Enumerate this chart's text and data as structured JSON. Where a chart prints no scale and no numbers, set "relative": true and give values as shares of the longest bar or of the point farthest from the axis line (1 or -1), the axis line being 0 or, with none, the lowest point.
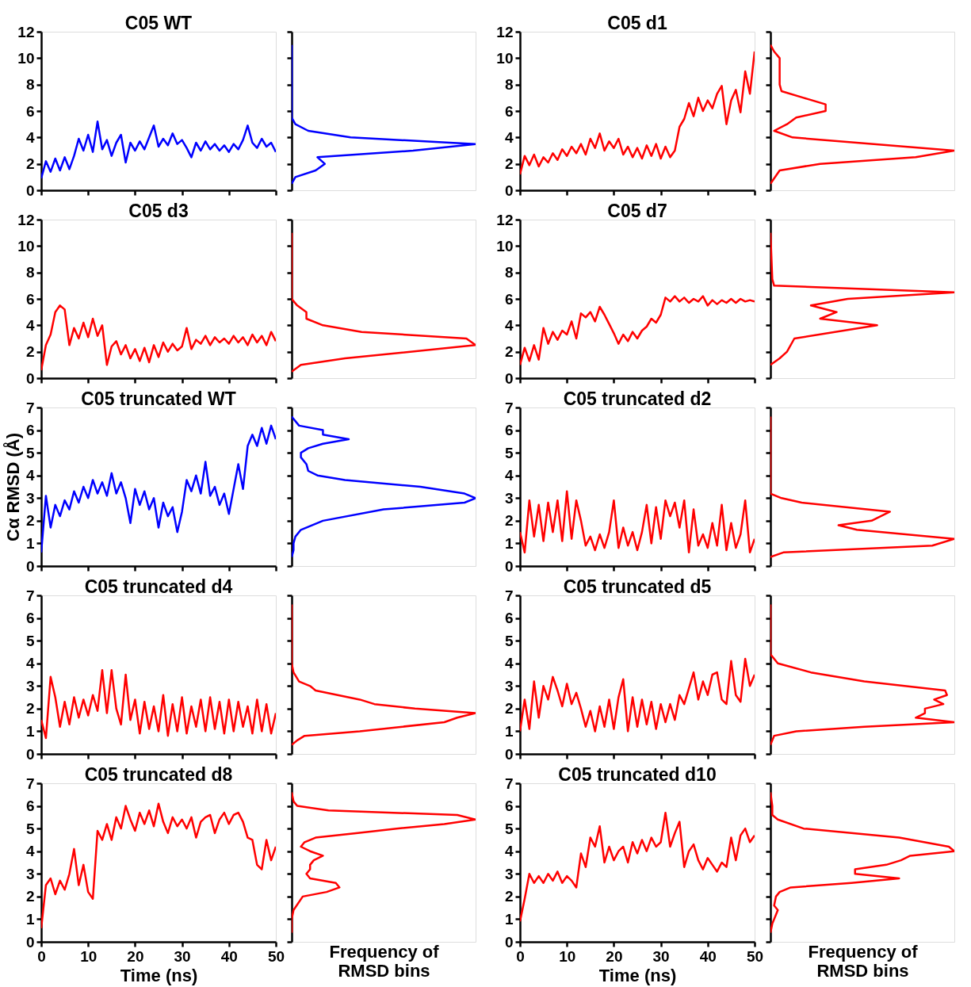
{
  "chart_data": [
    {
      "type": "line",
      "title": "C05 WT",
      "x": [
        0,
        1,
        2,
        3,
        4,
        5,
        6,
        7,
        8,
        9,
        10,
        11,
        12,
        13,
        14,
        15,
        16,
        17,
        18,
        19,
        20,
        21,
        22,
        23,
        24,
        25,
        26,
        27,
        28,
        29,
        30,
        31,
        32,
        33,
        34,
        35,
        36,
        37,
        38,
        39,
        40,
        41,
        42,
        43,
        44,
        45,
        46,
        47,
        48,
        49,
        50
      ],
      "series": [
        {
          "color": "#0000ff",
          "values": [
            0.9,
            2.2,
            1.4,
            2.4,
            1.5,
            2.5,
            1.6,
            2.6,
            3.9,
            3.0,
            4.2,
            2.9,
            5.2,
            3.1,
            3.8,
            2.6,
            3.6,
            4.2,
            2.1,
            3.6,
            3.0,
            3.7,
            3.1,
            4.0,
            4.9,
            3.3,
            3.9,
            3.4,
            4.3,
            3.5,
            3.8,
            3.2,
            2.5,
            3.6,
            3.0,
            3.7,
            3.1,
            3.5,
            3.0,
            3.4,
            2.9,
            3.5,
            3.1,
            3.8,
            4.9,
            3.6,
            3.2,
            3.9,
            3.3,
            3.6,
            2.9
          ]
        }
      ],
      "xlim": [
        0,
        50
      ],
      "xticks": [
        0,
        10,
        20,
        30,
        40,
        50
      ],
      "ylim": [
        0,
        12
      ],
      "yticks": [
        0,
        2,
        4,
        6,
        8,
        10,
        12
      ],
      "tick_labels": "y"
    },
    {
      "type": "line",
      "orientation": "horizontal",
      "relative": true,
      "x": [
        0.5,
        1.0,
        1.5,
        2.0,
        2.5,
        3.0,
        3.5,
        4.0,
        4.5,
        5.0,
        5.5,
        11.0
      ],
      "series": [
        {
          "color": "#0000ff",
          "values": [
            0,
            0.02,
            0.13,
            0.18,
            0.14,
            0.66,
            1,
            0.32,
            0.09,
            0.02,
            0,
            0
          ]
        }
      ],
      "ylim": [
        0,
        12
      ],
      "yticks": [
        0,
        2,
        4,
        6,
        8,
        10,
        12
      ],
      "tick_labels": false
    },
    {
      "type": "line",
      "title": "C05 d1",
      "x": [
        0,
        1,
        2,
        3,
        4,
        5,
        6,
        7,
        8,
        9,
        10,
        11,
        12,
        13,
        14,
        15,
        16,
        17,
        18,
        19,
        20,
        21,
        22,
        23,
        24,
        25,
        26,
        27,
        28,
        29,
        30,
        31,
        32,
        33,
        34,
        35,
        36,
        37,
        38,
        39,
        40,
        41,
        42,
        43,
        44,
        45,
        46,
        47,
        48,
        49,
        50
      ],
      "series": [
        {
          "color": "#ff0000",
          "values": [
            1.2,
            2.6,
            1.9,
            2.7,
            1.8,
            2.5,
            2.1,
            2.8,
            2.3,
            3.1,
            2.6,
            3.3,
            2.8,
            3.5,
            2.7,
            3.9,
            3.2,
            4.3,
            3.0,
            3.7,
            3.2,
            3.9,
            2.7,
            3.3,
            2.5,
            3.2,
            2.4,
            3.4,
            2.6,
            3.5,
            2.4,
            3.3,
            2.5,
            3.0,
            4.8,
            5.4,
            6.6,
            5.6,
            7.0,
            6.0,
            6.8,
            6.2,
            7.3,
            7.9,
            5.0,
            6.8,
            7.6,
            5.9,
            9.0,
            7.3,
            10.5
          ]
        }
      ],
      "xlim": [
        0,
        50
      ],
      "xticks": [
        0,
        10,
        20,
        30,
        40,
        50
      ],
      "ylim": [
        0,
        12
      ],
      "yticks": [
        0,
        2,
        4,
        6,
        8,
        10,
        12
      ],
      "tick_labels": "y"
    },
    {
      "type": "line",
      "orientation": "horizontal",
      "relative": true,
      "x": [
        0.5,
        1.5,
        2.0,
        2.5,
        3.0,
        4.0,
        4.5,
        5.0,
        5.5,
        6.0,
        6.5,
        7.0,
        7.5,
        8.0,
        9.0,
        10.0,
        10.5,
        11.0
      ],
      "series": [
        {
          "color": "#ff0000",
          "values": [
            0,
            0.05,
            0.27,
            0.79,
            1,
            0.12,
            0.02,
            0.09,
            0.14,
            0.3,
            0.3,
            0.18,
            0.06,
            0.05,
            0.05,
            0.05,
            0.02,
            0
          ]
        }
      ],
      "ylim": [
        0,
        12
      ],
      "yticks": [
        0,
        2,
        4,
        6,
        8,
        10,
        12
      ],
      "tick_labels": false
    },
    {
      "type": "line",
      "title": "C05 d3",
      "x": [
        0,
        1,
        2,
        3,
        4,
        5,
        6,
        7,
        8,
        9,
        10,
        11,
        12,
        13,
        14,
        15,
        16,
        17,
        18,
        19,
        20,
        21,
        22,
        23,
        24,
        25,
        26,
        27,
        28,
        29,
        30,
        31,
        32,
        33,
        34,
        35,
        36,
        37,
        38,
        39,
        40,
        41,
        42,
        43,
        44,
        45,
        46,
        47,
        48,
        49,
        50
      ],
      "series": [
        {
          "color": "#ff0000",
          "values": [
            0.6,
            2.5,
            3.3,
            5.0,
            5.5,
            5.2,
            2.5,
            3.8,
            3.0,
            4.2,
            3.1,
            4.5,
            3.2,
            4.0,
            1.0,
            2.4,
            2.8,
            1.8,
            2.5,
            1.5,
            2.2,
            1.3,
            2.3,
            1.2,
            2.5,
            1.6,
            2.7,
            2.0,
            2.6,
            2.1,
            2.4,
            3.8,
            2.2,
            2.9,
            2.6,
            3.2,
            2.5,
            3.1,
            2.7,
            3.0,
            2.6,
            3.2,
            2.7,
            3.1,
            2.5,
            3.3,
            2.7,
            3.2,
            2.5,
            3.5,
            2.8
          ]
        }
      ],
      "xlim": [
        0,
        50
      ],
      "xticks": [
        0,
        10,
        20,
        30,
        40,
        50
      ],
      "ylim": [
        0,
        12
      ],
      "yticks": [
        0,
        2,
        4,
        6,
        8,
        10,
        12
      ],
      "tick_labels": "y"
    },
    {
      "type": "line",
      "orientation": "horizontal",
      "relative": true,
      "x": [
        0.5,
        1.0,
        1.5,
        2.5,
        3.0,
        3.5,
        4.0,
        4.5,
        5.0,
        5.5,
        6.0,
        11.0
      ],
      "series": [
        {
          "color": "#ff0000",
          "values": [
            0,
            0.05,
            0.29,
            1,
            0.95,
            0.38,
            0.17,
            0.08,
            0.08,
            0.03,
            0,
            0
          ]
        }
      ],
      "ylim": [
        0,
        12
      ],
      "yticks": [
        0,
        2,
        4,
        6,
        8,
        10,
        12
      ],
      "tick_labels": false
    },
    {
      "type": "line",
      "title": "C05 d7",
      "x": [
        0,
        1,
        2,
        3,
        4,
        5,
        6,
        7,
        8,
        9,
        10,
        11,
        12,
        13,
        14,
        15,
        16,
        17,
        18,
        19,
        20,
        21,
        22,
        23,
        24,
        25,
        26,
        27,
        28,
        29,
        30,
        31,
        32,
        33,
        34,
        35,
        36,
        37,
        38,
        39,
        40,
        41,
        42,
        43,
        44,
        45,
        46,
        47,
        48,
        49,
        50
      ],
      "series": [
        {
          "color": "#ff0000",
          "values": [
            1.0,
            2.3,
            1.3,
            2.5,
            1.4,
            3.8,
            2.6,
            3.5,
            2.9,
            3.6,
            3.3,
            4.3,
            3.0,
            4.9,
            4.6,
            5.0,
            4.3,
            5.4,
            4.8,
            4.1,
            3.4,
            2.6,
            3.3,
            2.8,
            3.5,
            3.0,
            3.6,
            3.9,
            4.5,
            4.2,
            4.8,
            6.1,
            5.8,
            6.2,
            5.8,
            6.1,
            5.7,
            6.0,
            5.8,
            6.2,
            5.5,
            5.9,
            5.6,
            5.9,
            5.7,
            6.0,
            5.7,
            6.0,
            5.8,
            5.9,
            5.8
          ]
        }
      ],
      "xlim": [
        0,
        50
      ],
      "xticks": [
        0,
        10,
        20,
        30,
        40,
        50
      ],
      "ylim": [
        0,
        12
      ],
      "yticks": [
        0,
        2,
        4,
        6,
        8,
        10,
        12
      ],
      "tick_labels": "y"
    },
    {
      "type": "line",
      "orientation": "horizontal",
      "relative": true,
      "x": [
        1.0,
        1.5,
        2.0,
        3.0,
        4.0,
        4.5,
        5.0,
        5.5,
        6.0,
        6.5,
        7.0,
        7.5,
        11.0
      ],
      "series": [
        {
          "color": "#ff0000",
          "values": [
            0,
            0.05,
            0.09,
            0.13,
            0.58,
            0.27,
            0.36,
            0.22,
            0.42,
            1,
            0.02,
            0.01,
            0
          ]
        }
      ],
      "ylim": [
        0,
        12
      ],
      "yticks": [
        0,
        2,
        4,
        6,
        8,
        10,
        12
      ],
      "tick_labels": false
    },
    {
      "type": "line",
      "title": "C05 truncated WT",
      "ylabel": "Cα RMSD (Å)",
      "x": [
        0,
        1,
        2,
        3,
        4,
        5,
        6,
        7,
        8,
        9,
        10,
        11,
        12,
        13,
        14,
        15,
        16,
        17,
        18,
        19,
        20,
        21,
        22,
        23,
        24,
        25,
        26,
        27,
        28,
        29,
        30,
        31,
        32,
        33,
        34,
        35,
        36,
        37,
        38,
        39,
        40,
        41,
        42,
        43,
        44,
        45,
        46,
        47,
        48,
        49,
        50
      ],
      "series": [
        {
          "color": "#0000ff",
          "values": [
            0.6,
            3.1,
            1.7,
            2.7,
            2.2,
            2.9,
            2.5,
            3.3,
            2.8,
            3.5,
            3.0,
            3.8,
            3.2,
            3.7,
            3.1,
            4.1,
            3.2,
            3.7,
            3.0,
            1.9,
            3.4,
            2.7,
            3.3,
            2.5,
            3.0,
            1.7,
            2.8,
            2.2,
            2.6,
            1.5,
            2.4,
            3.8,
            3.3,
            4.0,
            3.2,
            4.6,
            3.1,
            3.5,
            2.7,
            3.2,
            2.3,
            3.4,
            4.5,
            3.4,
            5.3,
            5.8,
            5.3,
            6.1,
            5.4,
            6.2,
            5.6
          ]
        }
      ],
      "xlim": [
        0,
        50
      ],
      "xticks": [
        0,
        10,
        20,
        30,
        40,
        50
      ],
      "ylim": [
        0,
        7
      ],
      "yticks": [
        0,
        1,
        2,
        3,
        4,
        5,
        6,
        7
      ],
      "tick_labels": "y"
    },
    {
      "type": "line",
      "orientation": "horizontal",
      "relative": true,
      "x": [
        0.4,
        0.7,
        1.0,
        1.3,
        1.6,
        2.0,
        2.5,
        2.8,
        3.0,
        3.2,
        3.5,
        3.8,
        4.0,
        4.2,
        4.5,
        4.8,
        5.0,
        5.2,
        5.4,
        5.6,
        5.8,
        6.0,
        6.2,
        6.6
      ],
      "series": [
        {
          "color": "#0000ff",
          "values": [
            0,
            0.01,
            0.01,
            0.02,
            0.05,
            0.17,
            0.5,
            0.94,
            1,
            0.94,
            0.7,
            0.29,
            0.14,
            0.09,
            0.08,
            0.05,
            0.05,
            0.09,
            0.17,
            0.31,
            0.17,
            0.17,
            0.04,
            0
          ]
        }
      ],
      "ylim": [
        0,
        7
      ],
      "yticks": [
        0,
        1,
        2,
        3,
        4,
        5,
        6,
        7
      ],
      "tick_labels": false
    },
    {
      "type": "line",
      "title": "C05 truncated d2",
      "x": [
        0,
        1,
        2,
        3,
        4,
        5,
        6,
        7,
        8,
        9,
        10,
        11,
        12,
        13,
        14,
        15,
        16,
        17,
        18,
        19,
        20,
        21,
        22,
        23,
        24,
        25,
        26,
        27,
        28,
        29,
        30,
        31,
        32,
        33,
        34,
        35,
        36,
        37,
        38,
        39,
        40,
        41,
        42,
        43,
        44,
        45,
        46,
        47,
        48,
        49,
        50
      ],
      "series": [
        {
          "color": "#ff0000",
          "values": [
            1.5,
            0.6,
            2.9,
            1.3,
            2.7,
            1.1,
            2.8,
            1.5,
            2.9,
            1.1,
            3.3,
            1.2,
            2.9,
            2.0,
            0.9,
            1.3,
            0.7,
            1.4,
            0.8,
            1.5,
            2.9,
            0.8,
            1.7,
            0.9,
            1.5,
            0.7,
            1.5,
            2.7,
            1.0,
            2.6,
            1.2,
            2.9,
            2.2,
            2.8,
            1.7,
            2.9,
            0.6,
            2.5,
            0.9,
            1.4,
            0.8,
            1.9,
            0.9,
            2.7,
            0.7,
            1.9,
            0.8,
            1.4,
            2.9,
            0.6,
            1.2
          ]
        }
      ],
      "xlim": [
        0,
        50
      ],
      "xticks": [
        0,
        10,
        20,
        30,
        40,
        50
      ],
      "ylim": [
        0,
        7
      ],
      "yticks": [
        0,
        1,
        2,
        3,
        4,
        5,
        6,
        7
      ],
      "tick_labels": "y"
    },
    {
      "type": "line",
      "orientation": "horizontal",
      "relative": true,
      "x": [
        0.4,
        0.6,
        0.9,
        1.2,
        1.6,
        1.8,
        2.0,
        2.4,
        2.8,
        3.0,
        3.2,
        6.6
      ],
      "series": [
        {
          "color": "#ff0000",
          "values": [
            0,
            0.07,
            0.88,
            1,
            0.47,
            0.37,
            0.55,
            0.65,
            0.17,
            0.06,
            0,
            0
          ]
        }
      ],
      "ylim": [
        0,
        7
      ],
      "yticks": [
        0,
        1,
        2,
        3,
        4,
        5,
        6,
        7
      ],
      "tick_labels": false
    },
    {
      "type": "line",
      "title": "C05 truncated d4",
      "x": [
        0,
        1,
        2,
        3,
        4,
        5,
        6,
        7,
        8,
        9,
        10,
        11,
        12,
        13,
        14,
        15,
        16,
        17,
        18,
        19,
        20,
        21,
        22,
        23,
        24,
        25,
        26,
        27,
        28,
        29,
        30,
        31,
        32,
        33,
        34,
        35,
        36,
        37,
        38,
        39,
        40,
        41,
        42,
        43,
        44,
        45,
        46,
        47,
        48,
        49,
        50
      ],
      "series": [
        {
          "color": "#ff0000",
          "values": [
            1.5,
            0.7,
            3.4,
            2.5,
            1.2,
            2.3,
            1.3,
            2.5,
            1.6,
            2.4,
            1.7,
            2.6,
            1.9,
            3.7,
            1.8,
            3.7,
            2.0,
            1.3,
            3.5,
            1.5,
            2.4,
            0.9,
            2.3,
            1.1,
            2.1,
            1.0,
            2.6,
            0.8,
            2.2,
            1.0,
            2.5,
            0.9,
            2.1,
            1.2,
            2.4,
            1.0,
            2.5,
            1.1,
            2.3,
            0.9,
            2.4,
            1.0,
            2.3,
            1.2,
            2.1,
            0.9,
            2.4,
            1.0,
            2.2,
            0.9,
            1.8
          ]
        }
      ],
      "xlim": [
        0,
        50
      ],
      "xticks": [
        0,
        10,
        20,
        30,
        40,
        50
      ],
      "ylim": [
        0,
        7
      ],
      "yticks": [
        0,
        1,
        2,
        3,
        4,
        5,
        6,
        7
      ],
      "tick_labels": "y"
    },
    {
      "type": "line",
      "orientation": "horizontal",
      "relative": true,
      "x": [
        0.4,
        0.6,
        0.8,
        1.0,
        1.4,
        1.6,
        1.8,
        2.0,
        2.2,
        2.4,
        2.8,
        3.0,
        3.2,
        3.6,
        4.0,
        6.6
      ],
      "series": [
        {
          "color": "#ff0000",
          "values": [
            0,
            0.03,
            0.07,
            0.37,
            0.83,
            0.9,
            1,
            0.67,
            0.45,
            0.37,
            0.13,
            0.1,
            0.04,
            0.01,
            0,
            0
          ]
        }
      ],
      "ylim": [
        0,
        7
      ],
      "yticks": [
        0,
        1,
        2,
        3,
        4,
        5,
        6,
        7
      ],
      "tick_labels": false
    },
    {
      "type": "line",
      "title": "C05 truncated d5",
      "x": [
        0,
        1,
        2,
        3,
        4,
        5,
        6,
        7,
        8,
        9,
        10,
        11,
        12,
        13,
        14,
        15,
        16,
        17,
        18,
        19,
        20,
        21,
        22,
        23,
        24,
        25,
        26,
        27,
        28,
        29,
        30,
        31,
        32,
        33,
        34,
        35,
        36,
        37,
        38,
        39,
        40,
        41,
        42,
        43,
        44,
        45,
        46,
        47,
        48,
        49,
        50
      ],
      "series": [
        {
          "color": "#ff0000",
          "values": [
            1.0,
            2.4,
            1.1,
            3.2,
            1.6,
            3.0,
            2.4,
            3.4,
            2.8,
            2.1,
            3.1,
            2.2,
            2.7,
            2.0,
            1.2,
            1.9,
            1.0,
            2.1,
            1.2,
            2.4,
            1.1,
            2.5,
            3.3,
            1.0,
            2.5,
            1.2,
            2.4,
            1.3,
            2.3,
            1.1,
            2.2,
            1.4,
            2.2,
            1.5,
            2.6,
            2.2,
            2.9,
            3.6,
            2.4,
            3.2,
            2.6,
            3.5,
            3.6,
            2.4,
            2.2,
            4.1,
            2.6,
            2.3,
            4.2,
            3.0,
            3.5
          ]
        }
      ],
      "xlim": [
        0,
        50
      ],
      "xticks": [
        0,
        10,
        20,
        30,
        40,
        50
      ],
      "ylim": [
        0,
        7
      ],
      "yticks": [
        0,
        1,
        2,
        3,
        4,
        5,
        6,
        7
      ],
      "tick_labels": "y"
    },
    {
      "type": "line",
      "orientation": "horizontal",
      "relative": true,
      "x": [
        0.4,
        0.8,
        1.0,
        1.2,
        1.4,
        1.6,
        1.8,
        2.0,
        2.2,
        2.4,
        2.6,
        2.8,
        3.2,
        3.6,
        4.0,
        4.4,
        6.6
      ],
      "series": [
        {
          "color": "#ff0000",
          "values": [
            0,
            0.02,
            0.14,
            0.51,
            1,
            0.79,
            0.84,
            0.84,
            0.94,
            0.89,
            0.96,
            0.95,
            0.51,
            0.22,
            0.04,
            0,
            0
          ]
        }
      ],
      "ylim": [
        0,
        7
      ],
      "yticks": [
        0,
        1,
        2,
        3,
        4,
        5,
        6,
        7
      ],
      "tick_labels": false
    },
    {
      "type": "line",
      "title": "C05 truncated d8",
      "xlabel": "Time (ns)",
      "x": [
        0,
        1,
        2,
        3,
        4,
        5,
        6,
        7,
        8,
        9,
        10,
        11,
        12,
        13,
        14,
        15,
        16,
        17,
        18,
        19,
        20,
        21,
        22,
        23,
        24,
        25,
        26,
        27,
        28,
        29,
        30,
        31,
        32,
        33,
        34,
        35,
        36,
        37,
        38,
        39,
        40,
        41,
        42,
        43,
        44,
        45,
        46,
        47,
        48,
        49,
        50
      ],
      "series": [
        {
          "color": "#ff0000",
          "values": [
            0.6,
            2.5,
            2.8,
            2.1,
            2.7,
            2.3,
            3.0,
            4.1,
            2.5,
            3.4,
            2.2,
            1.9,
            4.9,
            4.5,
            5.2,
            4.5,
            5.5,
            5.0,
            6.0,
            5.4,
            4.9,
            5.7,
            5.2,
            5.8,
            5.1,
            6.1,
            5.3,
            4.8,
            5.5,
            5.1,
            5.4,
            5.0,
            5.5,
            4.6,
            5.3,
            5.5,
            5.6,
            4.8,
            5.4,
            5.7,
            5.2,
            5.6,
            5.7,
            5.3,
            4.6,
            4.5,
            3.4,
            3.2,
            4.5,
            3.6,
            4.2
          ]
        }
      ],
      "xlim": [
        0,
        50
      ],
      "xticks": [
        0,
        10,
        20,
        30,
        40,
        50
      ],
      "ylim": [
        0,
        7
      ],
      "yticks": [
        0,
        1,
        2,
        3,
        4,
        5,
        6,
        7
      ]
    },
    {
      "type": "line",
      "orientation": "horizontal",
      "relative": true,
      "xlabel": "Frequency of RMSD bins",
      "x": [
        0.4,
        1.0,
        1.4,
        2.0,
        2.2,
        2.4,
        2.6,
        2.8,
        3.0,
        3.2,
        3.4,
        3.6,
        3.8,
        4.0,
        4.2,
        4.4,
        4.6,
        4.8,
        5.0,
        5.2,
        5.4,
        5.6,
        5.8,
        6.0,
        6.2,
        6.6
      ],
      "series": [
        {
          "color": "#ff0000",
          "values": [
            0,
            0,
            0.01,
            0.06,
            0.19,
            0.26,
            0.24,
            0.1,
            0.08,
            0.1,
            0.1,
            0.12,
            0.17,
            0.1,
            0.05,
            0.07,
            0.13,
            0.36,
            0.57,
            0.83,
            1,
            0.9,
            0.2,
            0.03,
            0.01,
            0
          ]
        }
      ],
      "ylim": [
        0,
        7
      ],
      "yticks": [
        0,
        1,
        2,
        3,
        4,
        5,
        6,
        7
      ],
      "tick_labels": false
    },
    {
      "type": "line",
      "title": "C05 truncated d10",
      "xlabel": "Time (ns)",
      "x": [
        0,
        1,
        2,
        3,
        4,
        5,
        6,
        7,
        8,
        9,
        10,
        11,
        12,
        13,
        14,
        15,
        16,
        17,
        18,
        19,
        20,
        21,
        22,
        23,
        24,
        25,
        26,
        27,
        28,
        29,
        30,
        31,
        32,
        33,
        34,
        35,
        36,
        37,
        38,
        39,
        40,
        41,
        42,
        43,
        44,
        45,
        46,
        47,
        48,
        49,
        50
      ],
      "series": [
        {
          "color": "#ff0000",
          "values": [
            0.9,
            1.9,
            3.0,
            2.6,
            2.9,
            2.6,
            3.0,
            2.7,
            3.1,
            2.6,
            2.9,
            2.7,
            2.4,
            3.9,
            3.3,
            4.6,
            4.2,
            5.1,
            3.5,
            4.2,
            3.6,
            4.0,
            4.2,
            3.5,
            4.4,
            3.9,
            4.5,
            4.0,
            4.6,
            4.2,
            4.4,
            5.7,
            4.2,
            4.8,
            5.3,
            3.3,
            4.0,
            4.3,
            3.6,
            3.2,
            3.7,
            3.4,
            3.1,
            3.5,
            3.3,
            4.6,
            3.6,
            4.7,
            5.0,
            4.4,
            4.7
          ]
        }
      ],
      "xlim": [
        0,
        50
      ],
      "xticks": [
        0,
        10,
        20,
        30,
        40,
        50
      ],
      "ylim": [
        0,
        7
      ],
      "yticks": [
        0,
        1,
        2,
        3,
        4,
        5,
        6,
        7
      ]
    },
    {
      "type": "line",
      "orientation": "horizontal",
      "relative": true,
      "xlabel": "Frequency of RMSD bins",
      "x": [
        0.4,
        0.8,
        1.2,
        1.4,
        1.6,
        2.0,
        2.2,
        2.4,
        2.6,
        2.8,
        3.0,
        3.2,
        3.4,
        3.6,
        3.8,
        4.0,
        4.2,
        4.6,
        5.0,
        5.4,
        5.6,
        6.0,
        6.6
      ],
      "series": [
        {
          "color": "#ff0000",
          "values": [
            0,
            0.01,
            0.03,
            0.04,
            0.02,
            0.03,
            0.05,
            0.11,
            0.44,
            0.7,
            0.46,
            0.46,
            0.63,
            0.71,
            0.76,
            1,
            0.97,
            0.7,
            0.18,
            0.04,
            0.01,
            0.01,
            0
          ]
        }
      ],
      "ylim": [
        0,
        7
      ],
      "yticks": [
        0,
        1,
        2,
        3,
        4,
        5,
        6,
        7
      ],
      "tick_labels": false
    }
  ]
}
